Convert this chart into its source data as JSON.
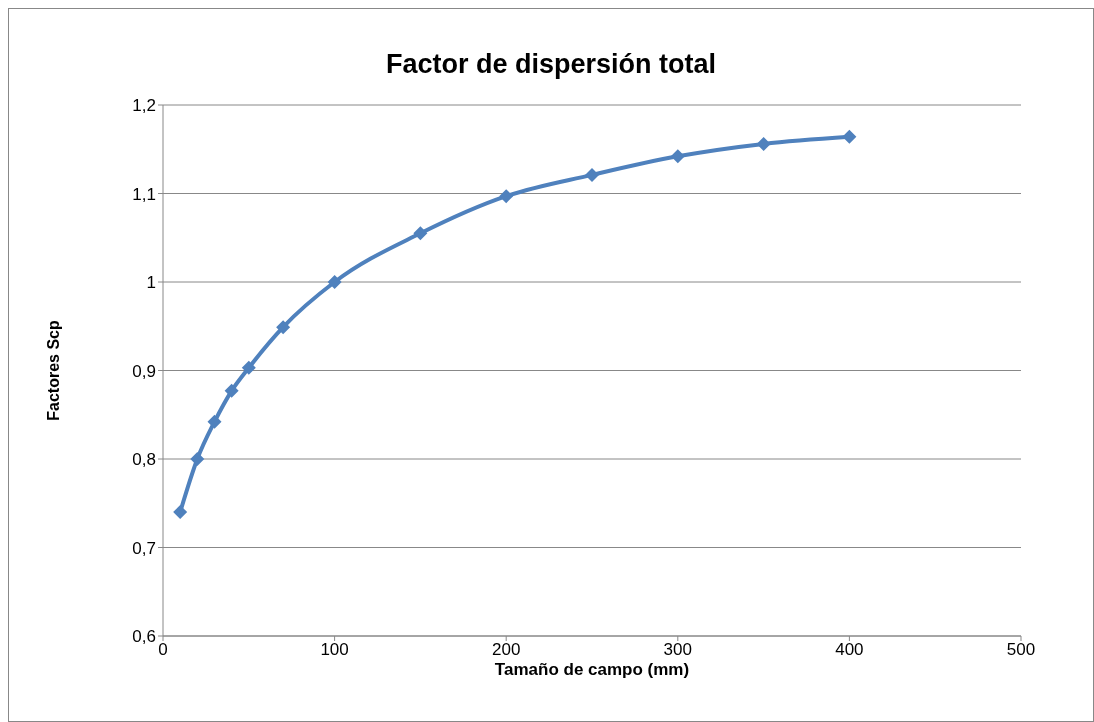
{
  "chart_data": {
    "type": "line",
    "title": "Factor de dispersión total",
    "xlabel": "Tamaño de campo (mm)",
    "ylabel": "Factores Scp",
    "x": [
      10,
      20,
      30,
      40,
      50,
      70,
      100,
      150,
      200,
      250,
      300,
      350,
      400
    ],
    "series": [
      {
        "color": "#4f81bd",
        "values": [
          0.74,
          0.8,
          0.842,
          0.877,
          0.903,
          0.949,
          1.0,
          1.055,
          1.097,
          1.121,
          1.142,
          1.156,
          1.164
        ]
      }
    ],
    "xlim": [
      0,
      500
    ],
    "xticks": [
      0,
      100,
      200,
      300,
      400,
      500
    ],
    "ylim": [
      0.6,
      1.2
    ],
    "yticks": [
      {
        "value": 0.6,
        "label": "0,6"
      },
      {
        "value": 0.7,
        "label": "0,7"
      },
      {
        "value": 0.8,
        "label": "0,8"
      },
      {
        "value": 0.9,
        "label": "0,9"
      },
      {
        "value": 1,
        "label": "1"
      },
      {
        "value": 1.1,
        "label": "1,1"
      },
      {
        "value": 1.2,
        "label": "1,2"
      }
    ],
    "grid": "y",
    "marker": "diamond",
    "line_style": "solid"
  }
}
